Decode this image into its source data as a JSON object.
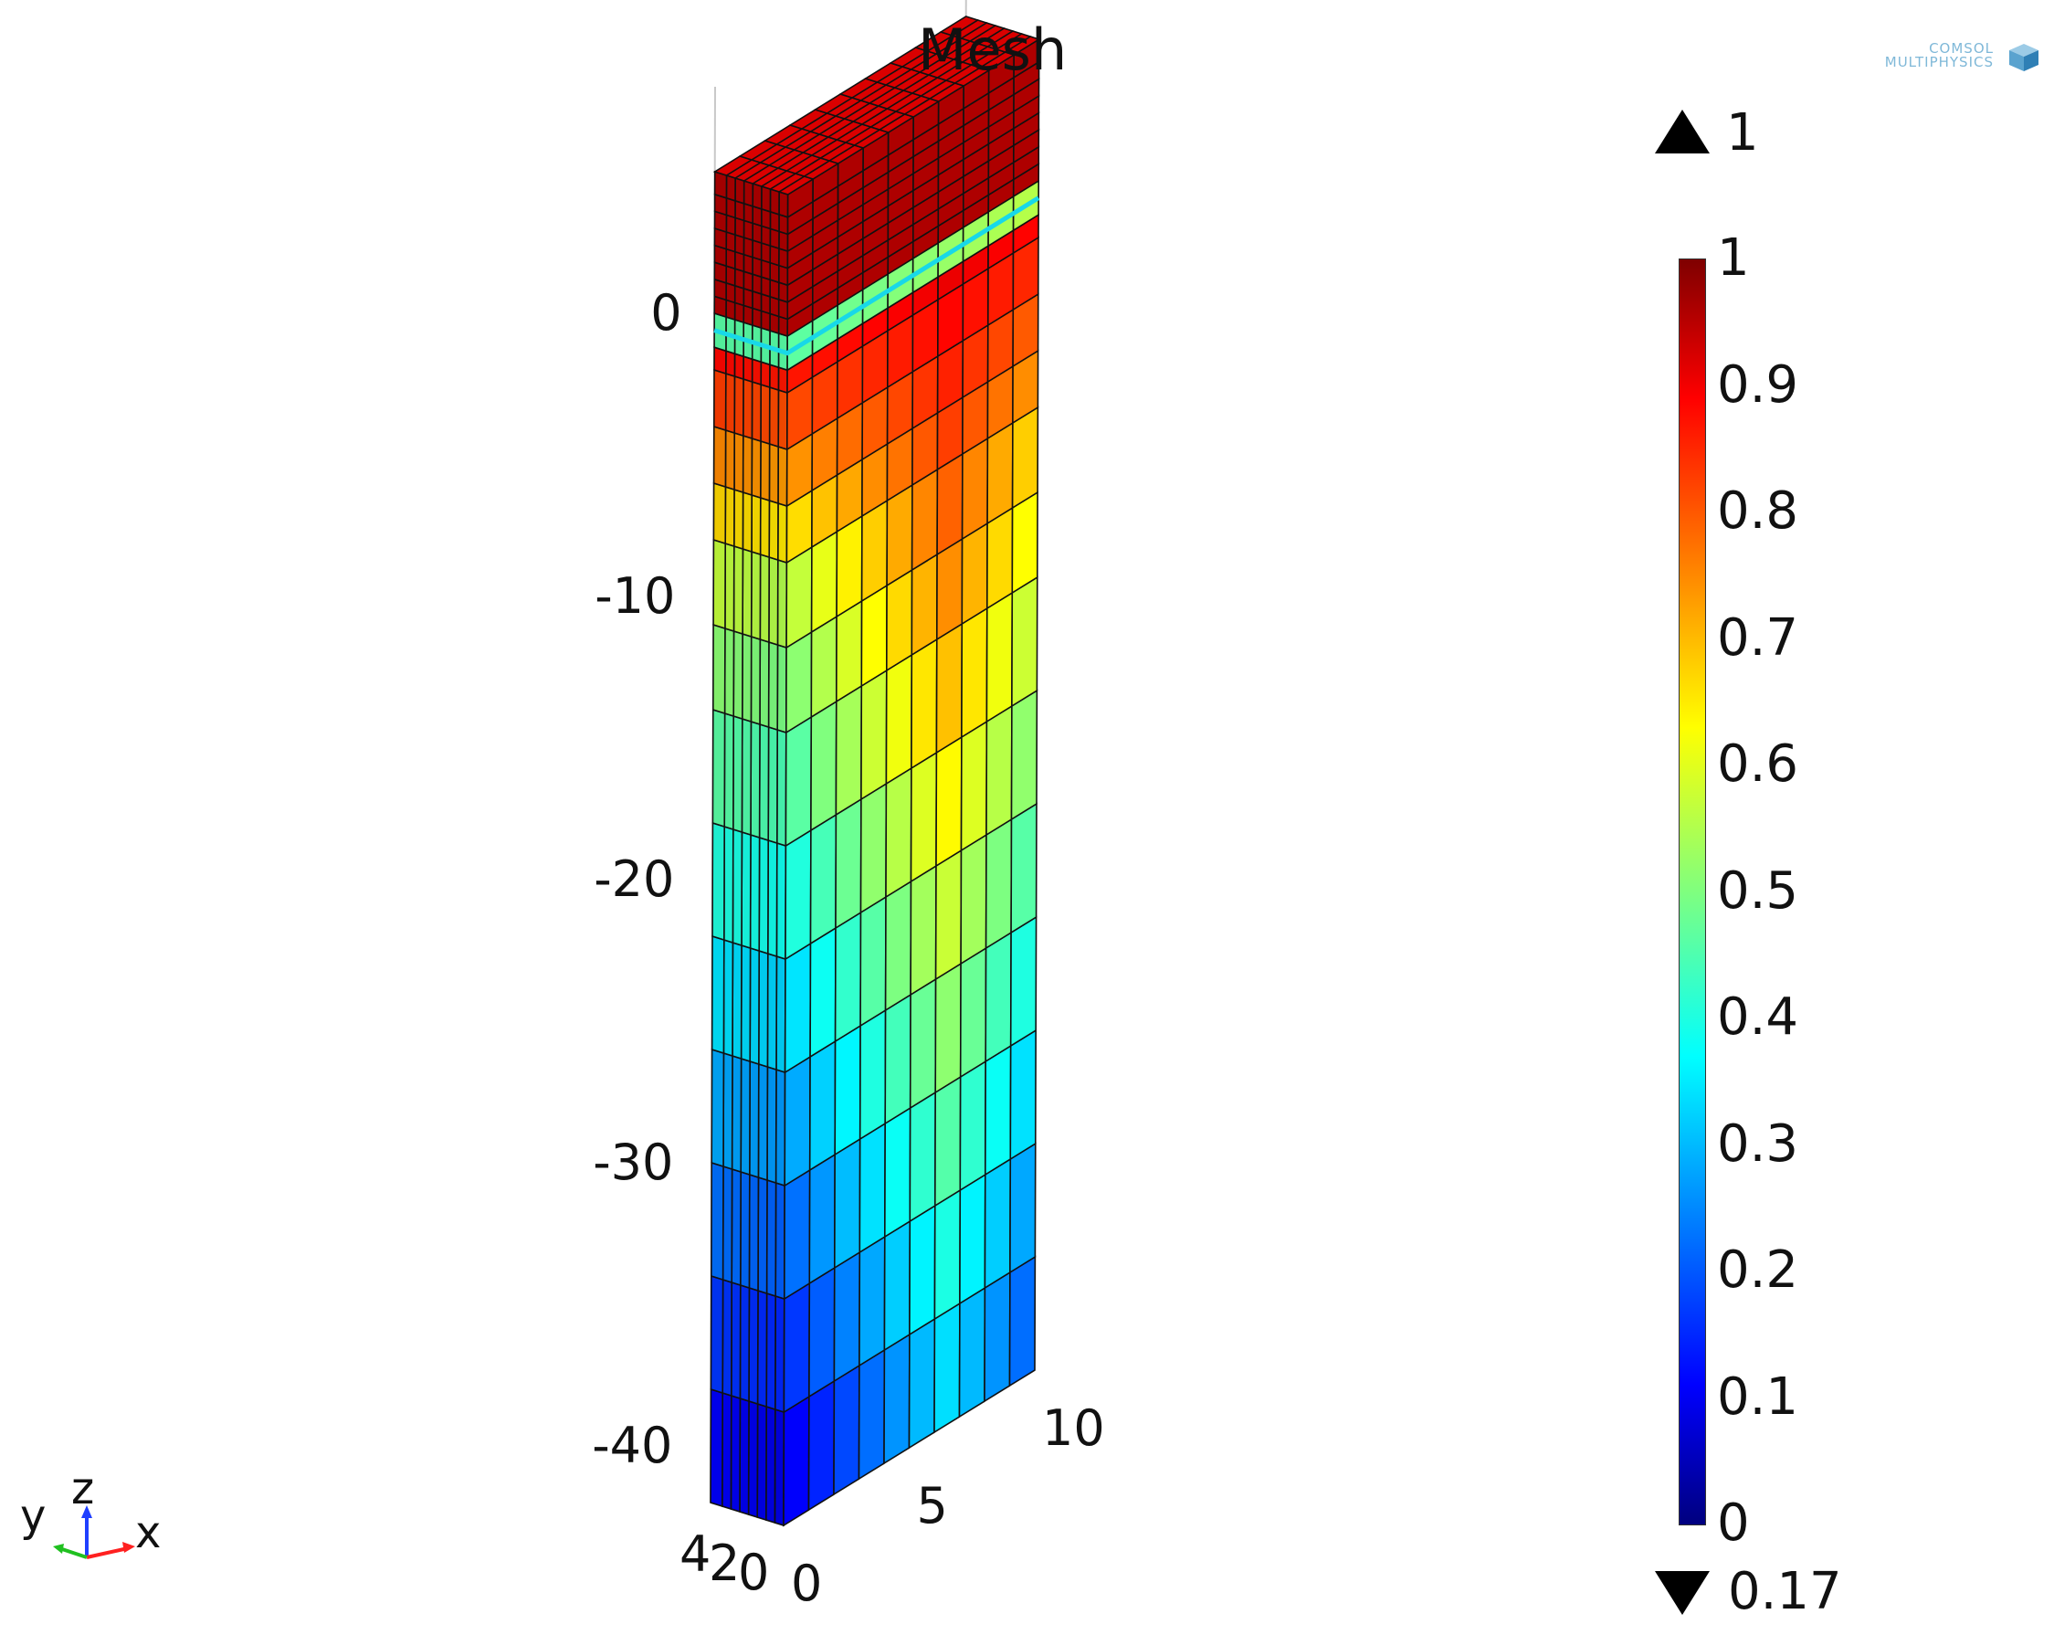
{
  "title": "Mesh",
  "logo": {
    "text_line1": "COMSOL",
    "text_line2": "MULTIPHYSICS"
  },
  "colorbar": {
    "max_indicator": "1",
    "min_indicator": "0.17",
    "ticks": [
      "1",
      "0.9",
      "0.8",
      "0.7",
      "0.6",
      "0.5",
      "0.4",
      "0.3",
      "0.2",
      "0.1",
      "0"
    ],
    "colormap": [
      "#00007f",
      "#0000ff",
      "#007fff",
      "#00ffff",
      "#7fff7f",
      "#ffff00",
      "#ff7f00",
      "#ff0000",
      "#7f0000"
    ]
  },
  "axes": {
    "z_ticks": [
      "0",
      "-10",
      "-20",
      "-30",
      "-40"
    ],
    "x_ticks": [
      "0",
      "5",
      "10"
    ],
    "y_ticks": [
      "0",
      "2",
      "4"
    ]
  },
  "axis_triad": {
    "x": "x",
    "y": "y",
    "z": "z"
  },
  "mesh": {
    "x_range": [
      0,
      10
    ],
    "y_range": [
      0,
      5
    ],
    "z_range": [
      -42,
      5
    ],
    "water_table_z": 0
  }
}
